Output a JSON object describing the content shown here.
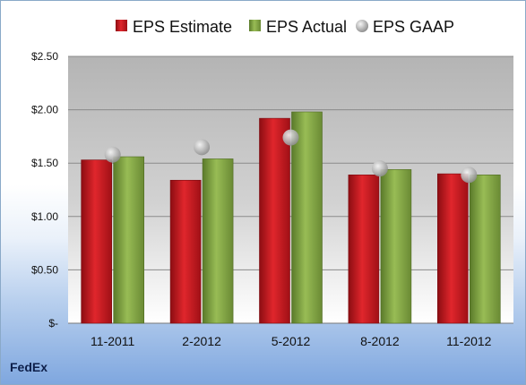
{
  "company": "FedEx",
  "chart_data": {
    "type": "bar",
    "categories": [
      "11-2011",
      "2-2012",
      "5-2012",
      "8-2012",
      "11-2012"
    ],
    "series": [
      {
        "name": "EPS Estimate",
        "type": "bar",
        "color": "#c0141b",
        "values": [
          1.53,
          1.34,
          1.92,
          1.39,
          1.4
        ]
      },
      {
        "name": "EPS Actual",
        "type": "bar",
        "color": "#7fa040",
        "values": [
          1.56,
          1.54,
          1.98,
          1.44,
          1.39
        ]
      },
      {
        "name": "EPS GAAP",
        "type": "marker",
        "color": "#b8b8b8",
        "values": [
          1.58,
          1.65,
          1.74,
          1.45,
          1.39
        ]
      }
    ],
    "ylim": [
      0,
      2.5
    ],
    "yticks": [
      0,
      0.5,
      1.0,
      1.5,
      2.0,
      2.5
    ],
    "ytick_labels": [
      "$-",
      "$0.50",
      "$1.00",
      "$1.50",
      "$2.00",
      "$2.50"
    ],
    "grid": true,
    "legend": "top"
  }
}
